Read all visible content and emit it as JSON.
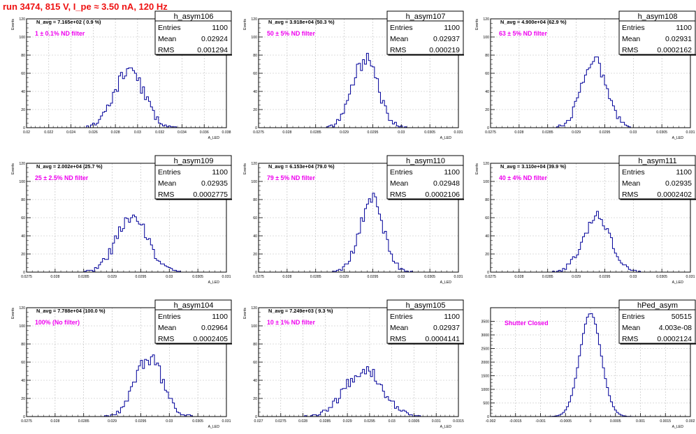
{
  "title": "run 3474,   815 V, I_pe ≈ 3.50 nA, 120 Hz",
  "colors": {
    "title": "#ee1111",
    "annotation": "#ee00ee",
    "histogram": "#000099",
    "grid": "#bbbbbb"
  },
  "chart_data": [
    {
      "type": "histogram",
      "name": "h_asym106",
      "xlabel": "A_LED",
      "ylabel": "Events",
      "xlim": [
        0.02,
        0.038
      ],
      "ylim": [
        0,
        120
      ],
      "xticks": [
        0.02,
        0.022,
        0.024,
        0.026,
        0.028,
        0.03,
        0.032,
        0.034,
        0.036,
        0.038
      ],
      "xtick_labels": [
        "0.02",
        "0.022",
        "0.024",
        "0.026",
        "0.028",
        "0.03",
        "0.032",
        "0.034",
        "0.036",
        "0.038"
      ],
      "yticks": [
        0,
        20,
        40,
        60,
        80,
        100,
        120
      ],
      "ytick_labels": [
        "0",
        "20",
        "40",
        "60",
        "80",
        "100",
        "120"
      ],
      "stats": {
        "title": "h_asym106",
        "rows": [
          [
            "Entries",
            "1100"
          ],
          [
            "Mean",
            "0.02924"
          ],
          [
            "RMS",
            "0.001294"
          ]
        ]
      },
      "navg": "N_avg = 7.165e+02 ( 0.9 %)",
      "annotation": "1 ± 0.1% ND filter",
      "hist": {
        "mean": 0.02924,
        "sigma": 0.001294,
        "bin_width": 0.00018,
        "peak": 64,
        "entries": 1100,
        "seed": 11
      }
    },
    {
      "type": "histogram",
      "name": "h_asym107",
      "xlabel": "A_LED",
      "ylabel": "Events",
      "xlim": [
        0.0275,
        0.031
      ],
      "ylim": [
        0,
        120
      ],
      "xticks": [
        0.0275,
        0.028,
        0.0285,
        0.029,
        0.0295,
        0.03,
        0.0305,
        0.031
      ],
      "xtick_labels": [
        "0.0275",
        "0.028",
        "0.0285",
        "0.029",
        "0.0295",
        "0.03",
        "0.0305",
        "0.031"
      ],
      "yticks": [
        0,
        20,
        40,
        60,
        80,
        100,
        120
      ],
      "ytick_labels": [
        "0",
        "20",
        "40",
        "60",
        "80",
        "100",
        "120"
      ],
      "stats": {
        "title": "h_asym107",
        "rows": [
          [
            "Entries",
            "1100"
          ],
          [
            "Mean",
            "0.02937"
          ],
          [
            "RMS",
            "0.000219"
          ]
        ]
      },
      "navg": "N_avg = 3.918e+04 (50.3 %)",
      "annotation": "50 ± 5% ND filter",
      "hist": {
        "mean": 0.02937,
        "sigma": 0.000219,
        "bin_width": 3.5e-05,
        "peak": 75,
        "entries": 1100,
        "seed": 12
      }
    },
    {
      "type": "histogram",
      "name": "h_asym108",
      "xlabel": "A_LED",
      "ylabel": "Events",
      "xlim": [
        0.0275,
        0.031
      ],
      "ylim": [
        0,
        120
      ],
      "xticks": [
        0.0275,
        0.028,
        0.0285,
        0.029,
        0.0295,
        0.03,
        0.0305,
        0.031
      ],
      "xtick_labels": [
        "0.0275",
        "0.028",
        "0.0285",
        "0.029",
        "0.0295",
        "0.03",
        "0.0305",
        "0.031"
      ],
      "yticks": [
        0,
        20,
        40,
        60,
        80,
        100,
        120
      ],
      "ytick_labels": [
        "0",
        "20",
        "40",
        "60",
        "80",
        "100",
        "120"
      ],
      "stats": {
        "title": "h_asym108",
        "rows": [
          [
            "Entries",
            "1100"
          ],
          [
            "Mean",
            "0.02931"
          ],
          [
            "RMS",
            "0.0002162"
          ]
        ]
      },
      "navg": "N_avg = 4.900e+04 (62.9 %)",
      "annotation": "63 ± 5% ND filter",
      "hist": {
        "mean": 0.02931,
        "sigma": 0.0002162,
        "bin_width": 3.5e-05,
        "peak": 77,
        "entries": 1100,
        "seed": 13
      }
    },
    {
      "type": "histogram",
      "name": "h_asym109",
      "xlabel": "A_LED",
      "ylabel": "Events",
      "xlim": [
        0.0275,
        0.031
      ],
      "ylim": [
        0,
        120
      ],
      "xticks": [
        0.0275,
        0.028,
        0.0285,
        0.029,
        0.0295,
        0.03,
        0.0305,
        0.031
      ],
      "xtick_labels": [
        "0.0275",
        "0.028",
        "0.0285",
        "0.029",
        "0.0295",
        "0.03",
        "0.0305",
        "0.031"
      ],
      "yticks": [
        0,
        20,
        40,
        60,
        80,
        100,
        120
      ],
      "ytick_labels": [
        "0",
        "20",
        "40",
        "60",
        "80",
        "100",
        "120"
      ],
      "stats": {
        "title": "h_asym109",
        "rows": [
          [
            "Entries",
            "1100"
          ],
          [
            "Mean",
            "0.02935"
          ],
          [
            "RMS",
            "0.0002775"
          ]
        ]
      },
      "navg": "N_avg = 2.002e+04 (25.7 %)",
      "annotation": "25 ± 2.5% ND filter",
      "hist": {
        "mean": 0.02935,
        "sigma": 0.0002775,
        "bin_width": 3.5e-05,
        "peak": 60,
        "entries": 1100,
        "seed": 14
      }
    },
    {
      "type": "histogram",
      "name": "h_asym110",
      "xlabel": "A_LED",
      "ylabel": "Events",
      "xlim": [
        0.0275,
        0.031
      ],
      "ylim": [
        0,
        120
      ],
      "xticks": [
        0.0275,
        0.028,
        0.0285,
        0.029,
        0.0295,
        0.03,
        0.0305,
        0.031
      ],
      "xtick_labels": [
        "0.0275",
        "0.028",
        "0.0285",
        "0.029",
        "0.0295",
        "0.03",
        "0.0305",
        "0.031"
      ],
      "yticks": [
        0,
        20,
        40,
        60,
        80,
        100,
        120
      ],
      "ytick_labels": [
        "0",
        "20",
        "40",
        "60",
        "80",
        "100",
        "120"
      ],
      "stats": {
        "title": "h_asym110",
        "rows": [
          [
            "Entries",
            "1100"
          ],
          [
            "Mean",
            "0.02948"
          ],
          [
            "RMS",
            "0.0002106"
          ]
        ]
      },
      "navg": "N_avg = 6.153e+04 (79.0 %)",
      "annotation": "79 ± 5% ND filter",
      "hist": {
        "mean": 0.02948,
        "sigma": 0.0002106,
        "bin_width": 3.5e-05,
        "peak": 80,
        "entries": 1100,
        "seed": 15
      }
    },
    {
      "type": "histogram",
      "name": "h_asym111",
      "xlabel": "A_LED",
      "ylabel": "Events",
      "xlim": [
        0.0275,
        0.031
      ],
      "ylim": [
        0,
        120
      ],
      "xticks": [
        0.0275,
        0.028,
        0.0285,
        0.029,
        0.0295,
        0.03,
        0.0305,
        0.031
      ],
      "xtick_labels": [
        "0.0275",
        "0.028",
        "0.0285",
        "0.029",
        "0.0295",
        "0.03",
        "0.0305",
        "0.031"
      ],
      "yticks": [
        0,
        20,
        40,
        60,
        80,
        100,
        120
      ],
      "ytick_labels": [
        "0",
        "20",
        "40",
        "60",
        "80",
        "100",
        "120"
      ],
      "stats": {
        "title": "h_asym111",
        "rows": [
          [
            "Entries",
            "1100"
          ],
          [
            "Mean",
            "0.02935"
          ],
          [
            "RMS",
            "0.0002402"
          ]
        ]
      },
      "navg": "N_avg = 3.110e+04 (39.9 %)",
      "annotation": "40 ± 4% ND filter",
      "hist": {
        "mean": 0.02935,
        "sigma": 0.0002402,
        "bin_width": 3.5e-05,
        "peak": 60,
        "entries": 1100,
        "seed": 16
      }
    },
    {
      "type": "histogram",
      "name": "h_asym104",
      "xlabel": "A_LED",
      "ylabel": "Events",
      "xlim": [
        0.0275,
        0.031
      ],
      "ylim": [
        0,
        120
      ],
      "xticks": [
        0.0275,
        0.028,
        0.0285,
        0.029,
        0.0295,
        0.03,
        0.0305,
        0.031
      ],
      "xtick_labels": [
        "0.0275",
        "0.028",
        "0.0285",
        "0.029",
        "0.0295",
        "0.03",
        "0.0305",
        "0.031"
      ],
      "yticks": [
        0,
        20,
        40,
        60,
        80,
        100,
        120
      ],
      "ytick_labels": [
        "0",
        "20",
        "40",
        "60",
        "80",
        "100",
        "120"
      ],
      "stats": {
        "title": "h_asym104",
        "rows": [
          [
            "Entries",
            "1100"
          ],
          [
            "Mean",
            "0.02964"
          ],
          [
            "RMS",
            "0.0002405"
          ]
        ]
      },
      "navg": "N_avg = 7.788e+04 (100.0 %)",
      "annotation": "100% (No filter)",
      "hist": {
        "mean": 0.02964,
        "sigma": 0.0002405,
        "bin_width": 3.5e-05,
        "peak": 66,
        "entries": 1100,
        "seed": 17
      }
    },
    {
      "type": "histogram",
      "name": "h_asym105",
      "xlabel": "A_LED",
      "ylabel": "Events",
      "xlim": [
        0.027,
        0.0315
      ],
      "ylim": [
        0,
        120
      ],
      "xticks": [
        0.027,
        0.0275,
        0.028,
        0.0285,
        0.029,
        0.0295,
        0.03,
        0.0305,
        0.031,
        0.0315
      ],
      "xtick_labels": [
        "0.027",
        "0.0275",
        "0.028",
        "0.0285",
        "0.029",
        "0.0295",
        "0.03",
        "0.0305",
        "0.031",
        "0.0315"
      ],
      "yticks": [
        0,
        20,
        40,
        60,
        80,
        100,
        120
      ],
      "ytick_labels": [
        "0",
        "20",
        "40",
        "60",
        "80",
        "100",
        "120"
      ],
      "stats": {
        "title": "h_asym105",
        "rows": [
          [
            "Entries",
            "1100"
          ],
          [
            "Mean",
            "0.02937"
          ],
          [
            "RMS",
            "0.0004141"
          ]
        ]
      },
      "navg": "N_avg = 7.249e+03 ( 9.3 %)",
      "annotation": "10 ± 1% ND filter",
      "hist": {
        "mean": 0.02937,
        "sigma": 0.0004141,
        "bin_width": 4.5e-05,
        "peak": 52,
        "entries": 1100,
        "seed": 18
      }
    },
    {
      "type": "histogram",
      "name": "hPed_asym",
      "xlabel": "A_LED",
      "ylabel": "",
      "xlim": [
        -0.002,
        0.002
      ],
      "ylim": [
        0,
        4000
      ],
      "xticks": [
        -0.002,
        -0.0015,
        -0.001,
        -0.0005,
        0,
        0.0005,
        0.001,
        0.0015,
        0.002
      ],
      "xtick_labels": [
        "-0.002",
        "-0.0015",
        "-0.001",
        "-0.0005",
        "0",
        "0.0005",
        "0.001",
        "0.0015",
        "0.002"
      ],
      "yticks": [
        0,
        500,
        1000,
        1500,
        2000,
        2500,
        3000,
        3500
      ],
      "ytick_labels": [
        "0",
        "500",
        "1000",
        "1500",
        "2000",
        "2500",
        "3000",
        "3500"
      ],
      "stats": {
        "title": "hPed_asym",
        "rows": [
          [
            "Entries",
            "50515"
          ],
          [
            "Mean",
            "4.003e-08"
          ],
          [
            "RMS",
            "0.0002124"
          ]
        ]
      },
      "navg": "",
      "annotation": "Shutter Closed",
      "hist": {
        "mean": 0.0,
        "sigma": 0.0002124,
        "bin_width": 4e-05,
        "peak": 3800,
        "entries": 50515,
        "seed": 19
      }
    }
  ]
}
